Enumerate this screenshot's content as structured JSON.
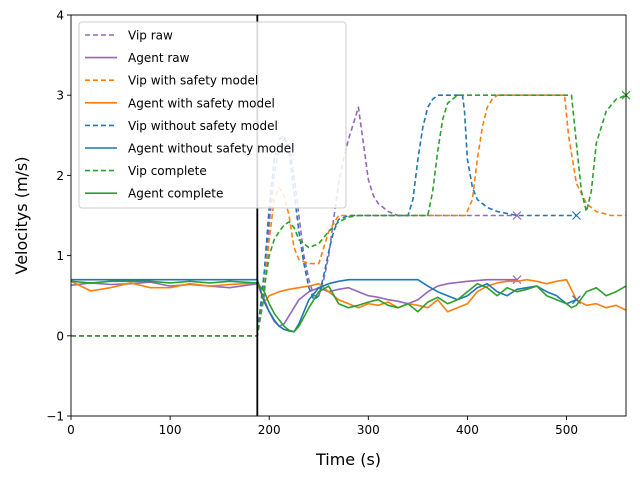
{
  "chart_data": {
    "type": "line",
    "title": "",
    "xlabel": "Time (s)",
    "ylabel": "Velocitys (m/s)",
    "xlim": [
      0,
      560
    ],
    "ylim": [
      -1,
      4
    ],
    "xticks": [
      "0",
      "100",
      "200",
      "300",
      "400",
      "500"
    ],
    "yticks": [
      "−1",
      "0",
      "1",
      "2",
      "3",
      "4"
    ],
    "xtick_values": [
      0,
      100,
      200,
      300,
      400,
      500
    ],
    "ytick_values": [
      -1,
      0,
      1,
      2,
      3,
      4
    ],
    "grid": false,
    "legend_position": "upper left",
    "vertical_line_x": 188,
    "series": [
      {
        "name": "Vip raw",
        "color": "#9467bd",
        "style": "dashed",
        "x": [
          0,
          188,
          195,
          200,
          205,
          210,
          215,
          220,
          225,
          230,
          235,
          240,
          245,
          250,
          255,
          260,
          265,
          270,
          275,
          280,
          285,
          290,
          295,
          300,
          305,
          310,
          315,
          320,
          330,
          340,
          350,
          360,
          380,
          400,
          420,
          450
        ],
        "y": [
          0,
          0,
          0.5,
          1.4,
          2.0,
          2.35,
          2.45,
          2.4,
          2.0,
          1.5,
          1.0,
          0.7,
          0.5,
          0.5,
          0.7,
          1.0,
          1.45,
          1.9,
          2.2,
          2.45,
          2.65,
          2.85,
          2.4,
          1.95,
          1.75,
          1.65,
          1.6,
          1.55,
          1.5,
          1.5,
          1.5,
          1.5,
          1.5,
          1.5,
          1.5,
          1.5
        ],
        "marker_end": true
      },
      {
        "name": "Agent raw",
        "color": "#9467bd",
        "style": "solid",
        "x": [
          0,
          20,
          40,
          60,
          80,
          100,
          120,
          140,
          160,
          188,
          195,
          200,
          205,
          210,
          215,
          220,
          225,
          230,
          240,
          250,
          260,
          270,
          280,
          290,
          300,
          310,
          320,
          330,
          340,
          350,
          360,
          370,
          380,
          400,
          420,
          450
        ],
        "y": [
          0.63,
          0.66,
          0.64,
          0.65,
          0.67,
          0.62,
          0.64,
          0.62,
          0.6,
          0.65,
          0.45,
          0.3,
          0.18,
          0.12,
          0.15,
          0.25,
          0.35,
          0.45,
          0.55,
          0.6,
          0.55,
          0.58,
          0.6,
          0.55,
          0.5,
          0.48,
          0.45,
          0.43,
          0.4,
          0.45,
          0.55,
          0.62,
          0.65,
          0.68,
          0.7,
          0.7
        ],
        "marker_end": true
      },
      {
        "name": "Vip with safety model",
        "color": "#ff7f0e",
        "style": "dashed",
        "x": [
          0,
          188,
          195,
          200,
          205,
          210,
          215,
          220,
          225,
          230,
          240,
          250,
          260,
          270,
          300,
          350,
          398,
          405,
          410,
          415,
          420,
          425,
          430,
          440,
          460,
          480,
          498,
          502,
          510,
          520,
          530,
          545,
          560
        ],
        "y": [
          0,
          0,
          0.6,
          1.2,
          1.7,
          1.85,
          1.75,
          1.5,
          1.1,
          0.95,
          0.9,
          0.9,
          1.3,
          1.5,
          1.5,
          1.5,
          1.5,
          1.7,
          2.2,
          2.6,
          2.85,
          2.95,
          3.0,
          3.0,
          3.0,
          3.0,
          3.0,
          2.5,
          1.9,
          1.65,
          1.55,
          1.5,
          1.5
        ],
        "marker_end": false
      },
      {
        "name": "Agent with safety model",
        "color": "#ff7f0e",
        "style": "solid",
        "x": [
          0,
          20,
          40,
          60,
          80,
          100,
          120,
          140,
          160,
          188,
          195,
          200,
          210,
          220,
          230,
          240,
          250,
          260,
          270,
          280,
          290,
          300,
          310,
          320,
          330,
          340,
          350,
          360,
          370,
          380,
          390,
          400,
          410,
          420,
          430,
          440,
          450,
          460,
          470,
          480,
          490,
          500,
          510,
          520,
          530,
          540,
          550,
          560
        ],
        "y": [
          0.68,
          0.56,
          0.6,
          0.66,
          0.6,
          0.6,
          0.65,
          0.62,
          0.64,
          0.66,
          0.42,
          0.5,
          0.55,
          0.58,
          0.6,
          0.62,
          0.65,
          0.55,
          0.45,
          0.4,
          0.35,
          0.4,
          0.38,
          0.42,
          0.35,
          0.4,
          0.38,
          0.35,
          0.45,
          0.3,
          0.35,
          0.4,
          0.55,
          0.62,
          0.66,
          0.68,
          0.68,
          0.7,
          0.68,
          0.65,
          0.68,
          0.7,
          0.45,
          0.38,
          0.4,
          0.35,
          0.38,
          0.32
        ],
        "marker_end": false
      },
      {
        "name": "Vip without safety model",
        "color": "#1f77b4",
        "style": "dashed",
        "x": [
          0,
          188,
          195,
          200,
          205,
          210,
          215,
          220,
          225,
          230,
          235,
          240,
          245,
          250,
          255,
          260,
          265,
          270,
          280,
          300,
          320,
          340,
          345,
          350,
          355,
          360,
          365,
          370,
          380,
          395,
          397,
          400,
          405,
          410,
          420,
          430,
          450,
          480,
          510
        ],
        "y": [
          0,
          0,
          0.8,
          1.6,
          2.2,
          2.45,
          2.5,
          2.3,
          1.8,
          1.3,
          0.9,
          0.6,
          0.45,
          0.5,
          0.75,
          1.05,
          1.3,
          1.45,
          1.5,
          1.5,
          1.5,
          1.5,
          1.7,
          2.2,
          2.6,
          2.85,
          2.95,
          3.0,
          3.0,
          3.0,
          2.8,
          2.2,
          1.85,
          1.7,
          1.6,
          1.55,
          1.5,
          1.5,
          1.5
        ],
        "marker_end": true
      },
      {
        "name": "Agent without safety model",
        "color": "#1f77b4",
        "style": "solid",
        "x": [
          0,
          20,
          40,
          60,
          80,
          100,
          120,
          140,
          160,
          188,
          195,
          200,
          205,
          210,
          215,
          220,
          225,
          230,
          240,
          250,
          260,
          270,
          280,
          300,
          320,
          340,
          350,
          360,
          370,
          380,
          390,
          400,
          410,
          420,
          430,
          440,
          450,
          460,
          470,
          480,
          490,
          500,
          510
        ],
        "y": [
          0.7,
          0.7,
          0.7,
          0.7,
          0.7,
          0.7,
          0.7,
          0.7,
          0.7,
          0.7,
          0.42,
          0.3,
          0.2,
          0.12,
          0.08,
          0.06,
          0.05,
          0.15,
          0.45,
          0.6,
          0.65,
          0.68,
          0.7,
          0.7,
          0.7,
          0.7,
          0.7,
          0.62,
          0.55,
          0.5,
          0.45,
          0.5,
          0.6,
          0.65,
          0.55,
          0.5,
          0.58,
          0.6,
          0.62,
          0.55,
          0.5,
          0.4,
          0.45
        ],
        "marker_end": true
      },
      {
        "name": "Vip complete",
        "color": "#2ca02c",
        "style": "dashed",
        "x": [
          0,
          188,
          195,
          200,
          205,
          210,
          215,
          220,
          225,
          230,
          240,
          250,
          260,
          270,
          280,
          290,
          300,
          320,
          340,
          360,
          365,
          370,
          375,
          380,
          390,
          400,
          420,
          440,
          450,
          470,
          490,
          505,
          510,
          515,
          520,
          525,
          530,
          540,
          550,
          560
        ],
        "y": [
          0,
          0,
          0.6,
          1.0,
          1.2,
          1.3,
          1.38,
          1.42,
          1.35,
          1.2,
          1.1,
          1.15,
          1.3,
          1.42,
          1.48,
          1.5,
          1.5,
          1.5,
          1.5,
          1.5,
          1.8,
          2.3,
          2.7,
          2.9,
          3.0,
          3.0,
          3.0,
          3.0,
          3.0,
          3.0,
          3.0,
          3.0,
          2.4,
          1.8,
          1.55,
          1.8,
          2.4,
          2.8,
          2.95,
          3.0
        ],
        "marker_end": true
      },
      {
        "name": "Agent complete",
        "color": "#2ca02c",
        "style": "solid",
        "x": [
          0,
          20,
          40,
          60,
          80,
          100,
          120,
          140,
          160,
          188,
          195,
          200,
          205,
          210,
          215,
          220,
          225,
          230,
          240,
          250,
          260,
          270,
          280,
          290,
          300,
          310,
          320,
          330,
          340,
          350,
          360,
          370,
          380,
          390,
          400,
          410,
          420,
          430,
          440,
          450,
          460,
          470,
          480,
          490,
          500,
          505,
          510,
          520,
          530,
          540,
          550,
          560
        ],
        "y": [
          0.68,
          0.66,
          0.68,
          0.68,
          0.68,
          0.66,
          0.68,
          0.66,
          0.68,
          0.66,
          0.55,
          0.4,
          0.28,
          0.2,
          0.12,
          0.07,
          0.05,
          0.12,
          0.35,
          0.55,
          0.62,
          0.4,
          0.35,
          0.38,
          0.42,
          0.45,
          0.38,
          0.35,
          0.4,
          0.3,
          0.42,
          0.48,
          0.4,
          0.45,
          0.55,
          0.65,
          0.6,
          0.5,
          0.6,
          0.55,
          0.58,
          0.62,
          0.5,
          0.45,
          0.4,
          0.35,
          0.38,
          0.55,
          0.6,
          0.5,
          0.55,
          0.62
        ],
        "marker_end": false
      }
    ]
  }
}
